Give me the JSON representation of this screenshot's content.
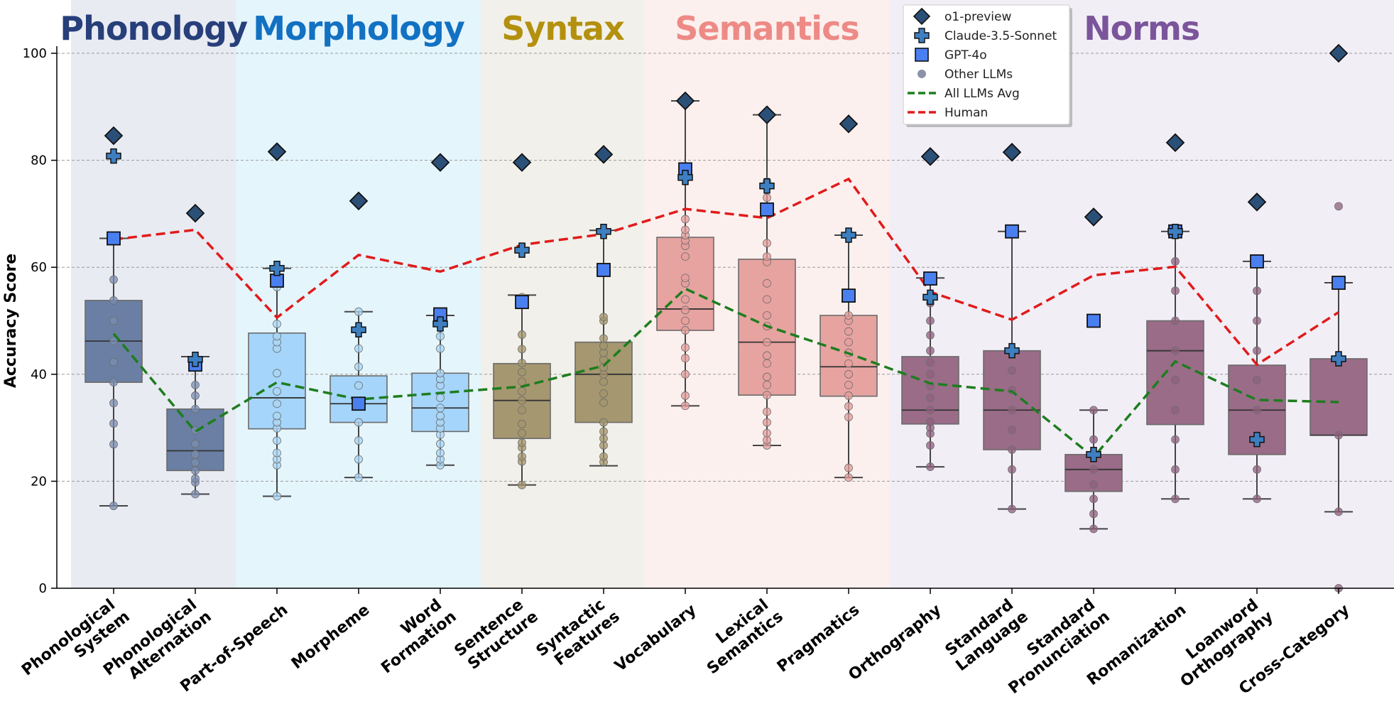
{
  "chart_data": {
    "type": "box",
    "ylabel": "Accuracy Score",
    "ylim": [
      0,
      100
    ],
    "yticks": [
      0,
      20,
      40,
      60,
      80,
      100
    ],
    "grid": "horizontal-dashed",
    "legend_placement": "top-center-right",
    "legend": [
      {
        "name": "o1-preview",
        "marker": "diamond",
        "color": "#2b5078"
      },
      {
        "name": "Claude-3.5-Sonnet",
        "marker": "plus",
        "color": "#3d7fc0"
      },
      {
        "name": "GPT-4o",
        "marker": "square",
        "color": "#4a7ff0"
      },
      {
        "name": "Other LLMs",
        "marker": "dot",
        "color": "#8a93a8"
      },
      {
        "name": "All LLMs Avg",
        "marker": "dashed-line",
        "color": "#1e7d1e"
      },
      {
        "name": "Human",
        "marker": "dashed-line",
        "color": "#e01b1b"
      }
    ],
    "groups": [
      {
        "name": "Phonology",
        "color": "#273f7a",
        "bg": "#e9ebf2",
        "start": 0,
        "end": 1
      },
      {
        "name": "Morphology",
        "color": "#1271c2",
        "bg": "#e5f5fc",
        "start": 2,
        "end": 4
      },
      {
        "name": "Syntax",
        "color": "#b3900e",
        "bg": "#f2f0ea",
        "start": 5,
        "end": 6
      },
      {
        "name": "Semantics",
        "color": "#ee8a86",
        "bg": "#fcf0ee",
        "start": 7,
        "end": 9
      },
      {
        "name": "Norms",
        "color": "#7b559b",
        "bg": "#f2eef6",
        "start": 10,
        "end": 15
      }
    ],
    "categories": [
      "Phonological System",
      "Phonological Alternation",
      "Part-of-Speech",
      "Morpheme",
      "Word Formation",
      "Sentence Structure",
      "Syntactic Features",
      "Vocabulary",
      "Lexical Semantics",
      "Pragmatics",
      "Orthography",
      "Standard Language",
      "Standard Pronunciation",
      "Romanization",
      "Loanword Orthography",
      "Cross-Category"
    ],
    "box_fill": [
      "#6a7fa3",
      "#6a7fa3",
      "#a5d5fa",
      "#a5d5fa",
      "#a5d5fa",
      "#a59770",
      "#a59770",
      "#e6a3a0",
      "#e6a3a0",
      "#e6a3a0",
      "#9a6c88",
      "#9a6c88",
      "#9a6c88",
      "#9a6c88",
      "#9a6c88",
      "#9a6c88"
    ],
    "point_fill": [
      "#7a8db0",
      "#7a8db0",
      "#a9d6f5",
      "#a9d6f5",
      "#a9d6f5",
      "#a3946a",
      "#a3946a",
      "#e49e9b",
      "#e49e9b",
      "#e49e9b",
      "#8f5f7d",
      "#8f5f7d",
      "#8f5f7d",
      "#8f5f7d",
      "#8f5f7d",
      "#8f5f7d"
    ],
    "boxes": [
      {
        "whisker_low": 15.4,
        "q1": 38.5,
        "median": 46.2,
        "q3": 53.8,
        "whisker_high": 65.4
      },
      {
        "whisker_low": 17.6,
        "q1": 22.0,
        "median": 25.7,
        "q3": 33.5,
        "whisker_high": 43.3
      },
      {
        "whisker_low": 17.2,
        "q1": 29.8,
        "median": 35.6,
        "q3": 47.7,
        "whisker_high": 59.8
      },
      {
        "whisker_low": 20.7,
        "q1": 31.0,
        "median": 34.5,
        "q3": 39.7,
        "whisker_high": 51.7
      },
      {
        "whisker_low": 23.0,
        "q1": 29.3,
        "median": 33.7,
        "q3": 40.2,
        "whisker_high": 51.0
      },
      {
        "whisker_low": 19.3,
        "q1": 28.0,
        "median": 35.1,
        "q3": 42.0,
        "whisker_high": 54.8
      },
      {
        "whisker_low": 22.9,
        "q1": 31.0,
        "median": 40.0,
        "q3": 46.0,
        "whisker_high": 66.9
      },
      {
        "whisker_low": 34.1,
        "q1": 48.2,
        "median": 52.2,
        "q3": 65.6,
        "whisker_high": 91.1
      },
      {
        "whisker_low": 26.7,
        "q1": 36.1,
        "median": 46.0,
        "q3": 61.5,
        "whisker_high": 88.5
      },
      {
        "whisker_low": 20.7,
        "q1": 35.9,
        "median": 41.4,
        "q3": 51.0,
        "whisker_high": 66.0
      },
      {
        "whisker_low": 22.7,
        "q1": 30.7,
        "median": 33.3,
        "q3": 43.3,
        "whisker_high": 58.0
      },
      {
        "whisker_low": 14.8,
        "q1": 25.9,
        "median": 33.3,
        "q3": 44.4,
        "whisker_high": 66.7
      },
      {
        "whisker_low": 11.1,
        "q1": 18.1,
        "median": 22.2,
        "q3": 25.0,
        "whisker_high": 33.3
      },
      {
        "whisker_low": 16.7,
        "q1": 30.6,
        "median": 44.4,
        "q3": 50.0,
        "whisker_high": 66.7
      },
      {
        "whisker_low": 16.7,
        "q1": 25.0,
        "median": 33.3,
        "q3": 41.7,
        "whisker_high": 61.1
      },
      {
        "whisker_low": 14.3,
        "q1": 28.6,
        "median": 28.6,
        "q3": 42.9,
        "whisker_high": 57.1
      }
    ],
    "other_llms": [
      [
        15.4,
        26.9,
        30.8,
        34.6,
        38.5,
        42.3,
        46.2,
        50.0,
        53.8,
        57.7
      ],
      [
        17.6,
        19.8,
        20.5,
        22.0,
        23.5,
        25.0,
        27.0,
        29.5,
        33.5,
        36.0,
        38.0
      ],
      [
        17.2,
        23.0,
        24.1,
        25.3,
        27.6,
        29.9,
        31.0,
        32.2,
        34.5,
        36.8,
        40.2,
        44.8,
        46.0,
        47.1,
        49.4,
        56.3
      ],
      [
        20.7,
        24.1,
        27.6,
        31.0,
        34.5,
        37.9,
        41.4,
        44.8,
        48.3,
        51.7
      ],
      [
        23.0,
        24.1,
        25.3,
        27.0,
        28.7,
        29.9,
        31.0,
        32.2,
        33.7,
        35.6,
        37.9,
        39.1,
        40.2,
        44.8,
        47.1,
        49.4
      ],
      [
        19.3,
        23.7,
        24.6,
        26.3,
        27.2,
        29.0,
        30.7,
        33.3,
        35.1,
        36.8,
        38.6,
        40.4,
        42.1,
        44.7,
        47.4,
        54.4
      ],
      [
        23.6,
        24.6,
        26.7,
        28.0,
        29.3,
        31.0,
        34.7,
        36.4,
        38.6,
        40.0,
        41.3,
        42.7,
        44.0,
        45.3,
        46.7,
        50.0,
        50.7
      ],
      [
        34.1,
        36.0,
        40.0,
        43.0,
        45.0,
        48.2,
        50.0,
        52.0,
        54.0,
        57.0,
        58.0,
        62.0,
        64.0,
        65.0,
        66.0,
        67.0,
        69.0
      ],
      [
        26.7,
        27.7,
        29.0,
        31.0,
        33.0,
        36.1,
        38.0,
        39.5,
        42.0,
        43.5,
        46.0,
        49.0,
        51.0,
        54.0,
        57.0,
        61.0,
        62.0,
        64.5,
        73.0,
        76.0
      ],
      [
        20.7,
        22.5,
        32.0,
        34.0,
        36.0,
        38.0,
        40.0,
        42.0,
        44.0,
        46.0,
        48.0,
        50.0,
        51.0
      ],
      [
        22.7,
        26.7,
        28.9,
        30.0,
        31.1,
        33.3,
        35.6,
        37.8,
        40.0,
        42.2,
        44.4,
        47.3,
        50.0,
        53.3
      ],
      [
        14.8,
        22.2,
        25.9,
        29.6,
        33.3,
        37.0,
        40.7,
        44.4
      ],
      [
        11.1,
        13.9,
        16.7,
        19.4,
        22.2,
        25.0,
        27.8,
        33.3
      ],
      [
        16.7,
        22.2,
        27.8,
        33.3,
        38.9,
        44.4,
        50.0,
        55.6,
        61.1
      ],
      [
        16.7,
        22.2,
        27.8,
        33.3,
        38.9,
        44.4,
        50.0,
        55.6
      ],
      [
        0.0,
        14.3,
        28.6,
        71.4
      ]
    ],
    "o1_preview": [
      84.6,
      70.1,
      81.6,
      72.4,
      79.6,
      79.6,
      81.1,
      91.1,
      88.5,
      86.8,
      80.7,
      81.5,
      69.4,
      83.3,
      72.2,
      100.0
    ],
    "claude_35_sonnet": [
      80.8,
      42.8,
      59.8,
      48.3,
      49.4,
      63.2,
      66.7,
      76.8,
      75.2,
      66.0,
      54.4,
      44.4,
      25.0,
      66.7,
      27.8,
      42.9
    ],
    "gpt_4o": [
      65.4,
      41.8,
      57.5,
      34.5,
      51.2,
      53.5,
      59.5,
      78.3,
      70.8,
      54.7,
      57.9,
      66.7,
      50.0,
      66.7,
      61.1,
      57.1
    ],
    "all_llms_avg": [
      47.6,
      29.3,
      38.5,
      35.3,
      36.5,
      37.7,
      41.6,
      56.0,
      49.0,
      43.9,
      38.3,
      36.8,
      24.5,
      42.4,
      35.2,
      34.8
    ],
    "human": [
      65.2,
      67.0,
      50.6,
      62.3,
      59.2,
      64.2,
      66.2,
      70.9,
      69.2,
      76.5,
      55.4,
      50.2,
      58.5,
      60.1,
      41.8,
      51.6
    ]
  }
}
